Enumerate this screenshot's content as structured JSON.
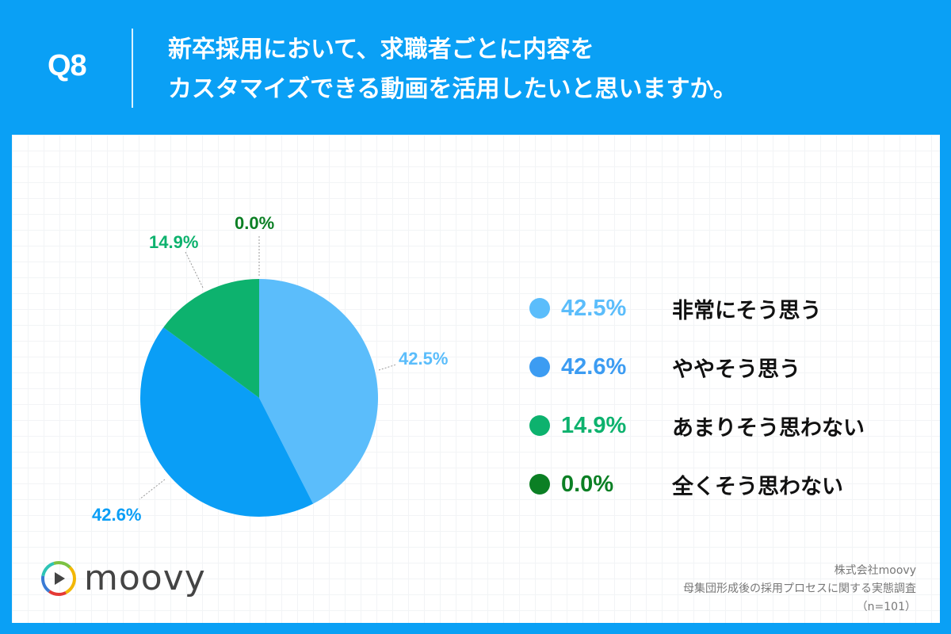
{
  "header": {
    "question_number": "Q8",
    "title_line1": "新卒採用において、求職者ごとに内容を",
    "title_line2": "カスタマイズできる動画を活用したいと思いますか。"
  },
  "colors": {
    "frame": "#0aa0f5",
    "very_much": "#5bbdfb",
    "somewhat": "#0a9ef6",
    "not_really": "#0db26e",
    "not_at_all": "#0b7f24"
  },
  "legend": [
    {
      "pct": "42.5%",
      "label": "非常にそう思う",
      "color": "#5bbdfb"
    },
    {
      "pct": "42.6%",
      "label": "ややそう思う",
      "color": "#3c9cf2"
    },
    {
      "pct": "14.9%",
      "label": "あまりそう思わない",
      "color": "#0db26e"
    },
    {
      "pct": "0.0%",
      "label": "全くそう思わない",
      "color": "#0b7f24"
    }
  ],
  "pie_labels": {
    "very_much": "42.5%",
    "somewhat": "42.6%",
    "not_really": "14.9%",
    "not_at_all": "0.0%"
  },
  "logo": {
    "text": "moovy"
  },
  "credit": {
    "company": "株式会社moovy",
    "survey": "母集団形成後の採用プロセスに関する実態調査",
    "sample": "（n=101）"
  },
  "chart_data": {
    "type": "pie",
    "title": "新卒採用において、求職者ごとに内容をカスタマイズできる動画を活用したいと思いますか。",
    "categories": [
      "非常にそう思う",
      "ややそう思う",
      "あまりそう思わない",
      "全くそう思わない"
    ],
    "values": [
      42.5,
      42.6,
      14.9,
      0.0
    ],
    "unit": "%",
    "n": 101,
    "legend_position": "right",
    "start_angle": "12 o'clock, clockwise"
  }
}
